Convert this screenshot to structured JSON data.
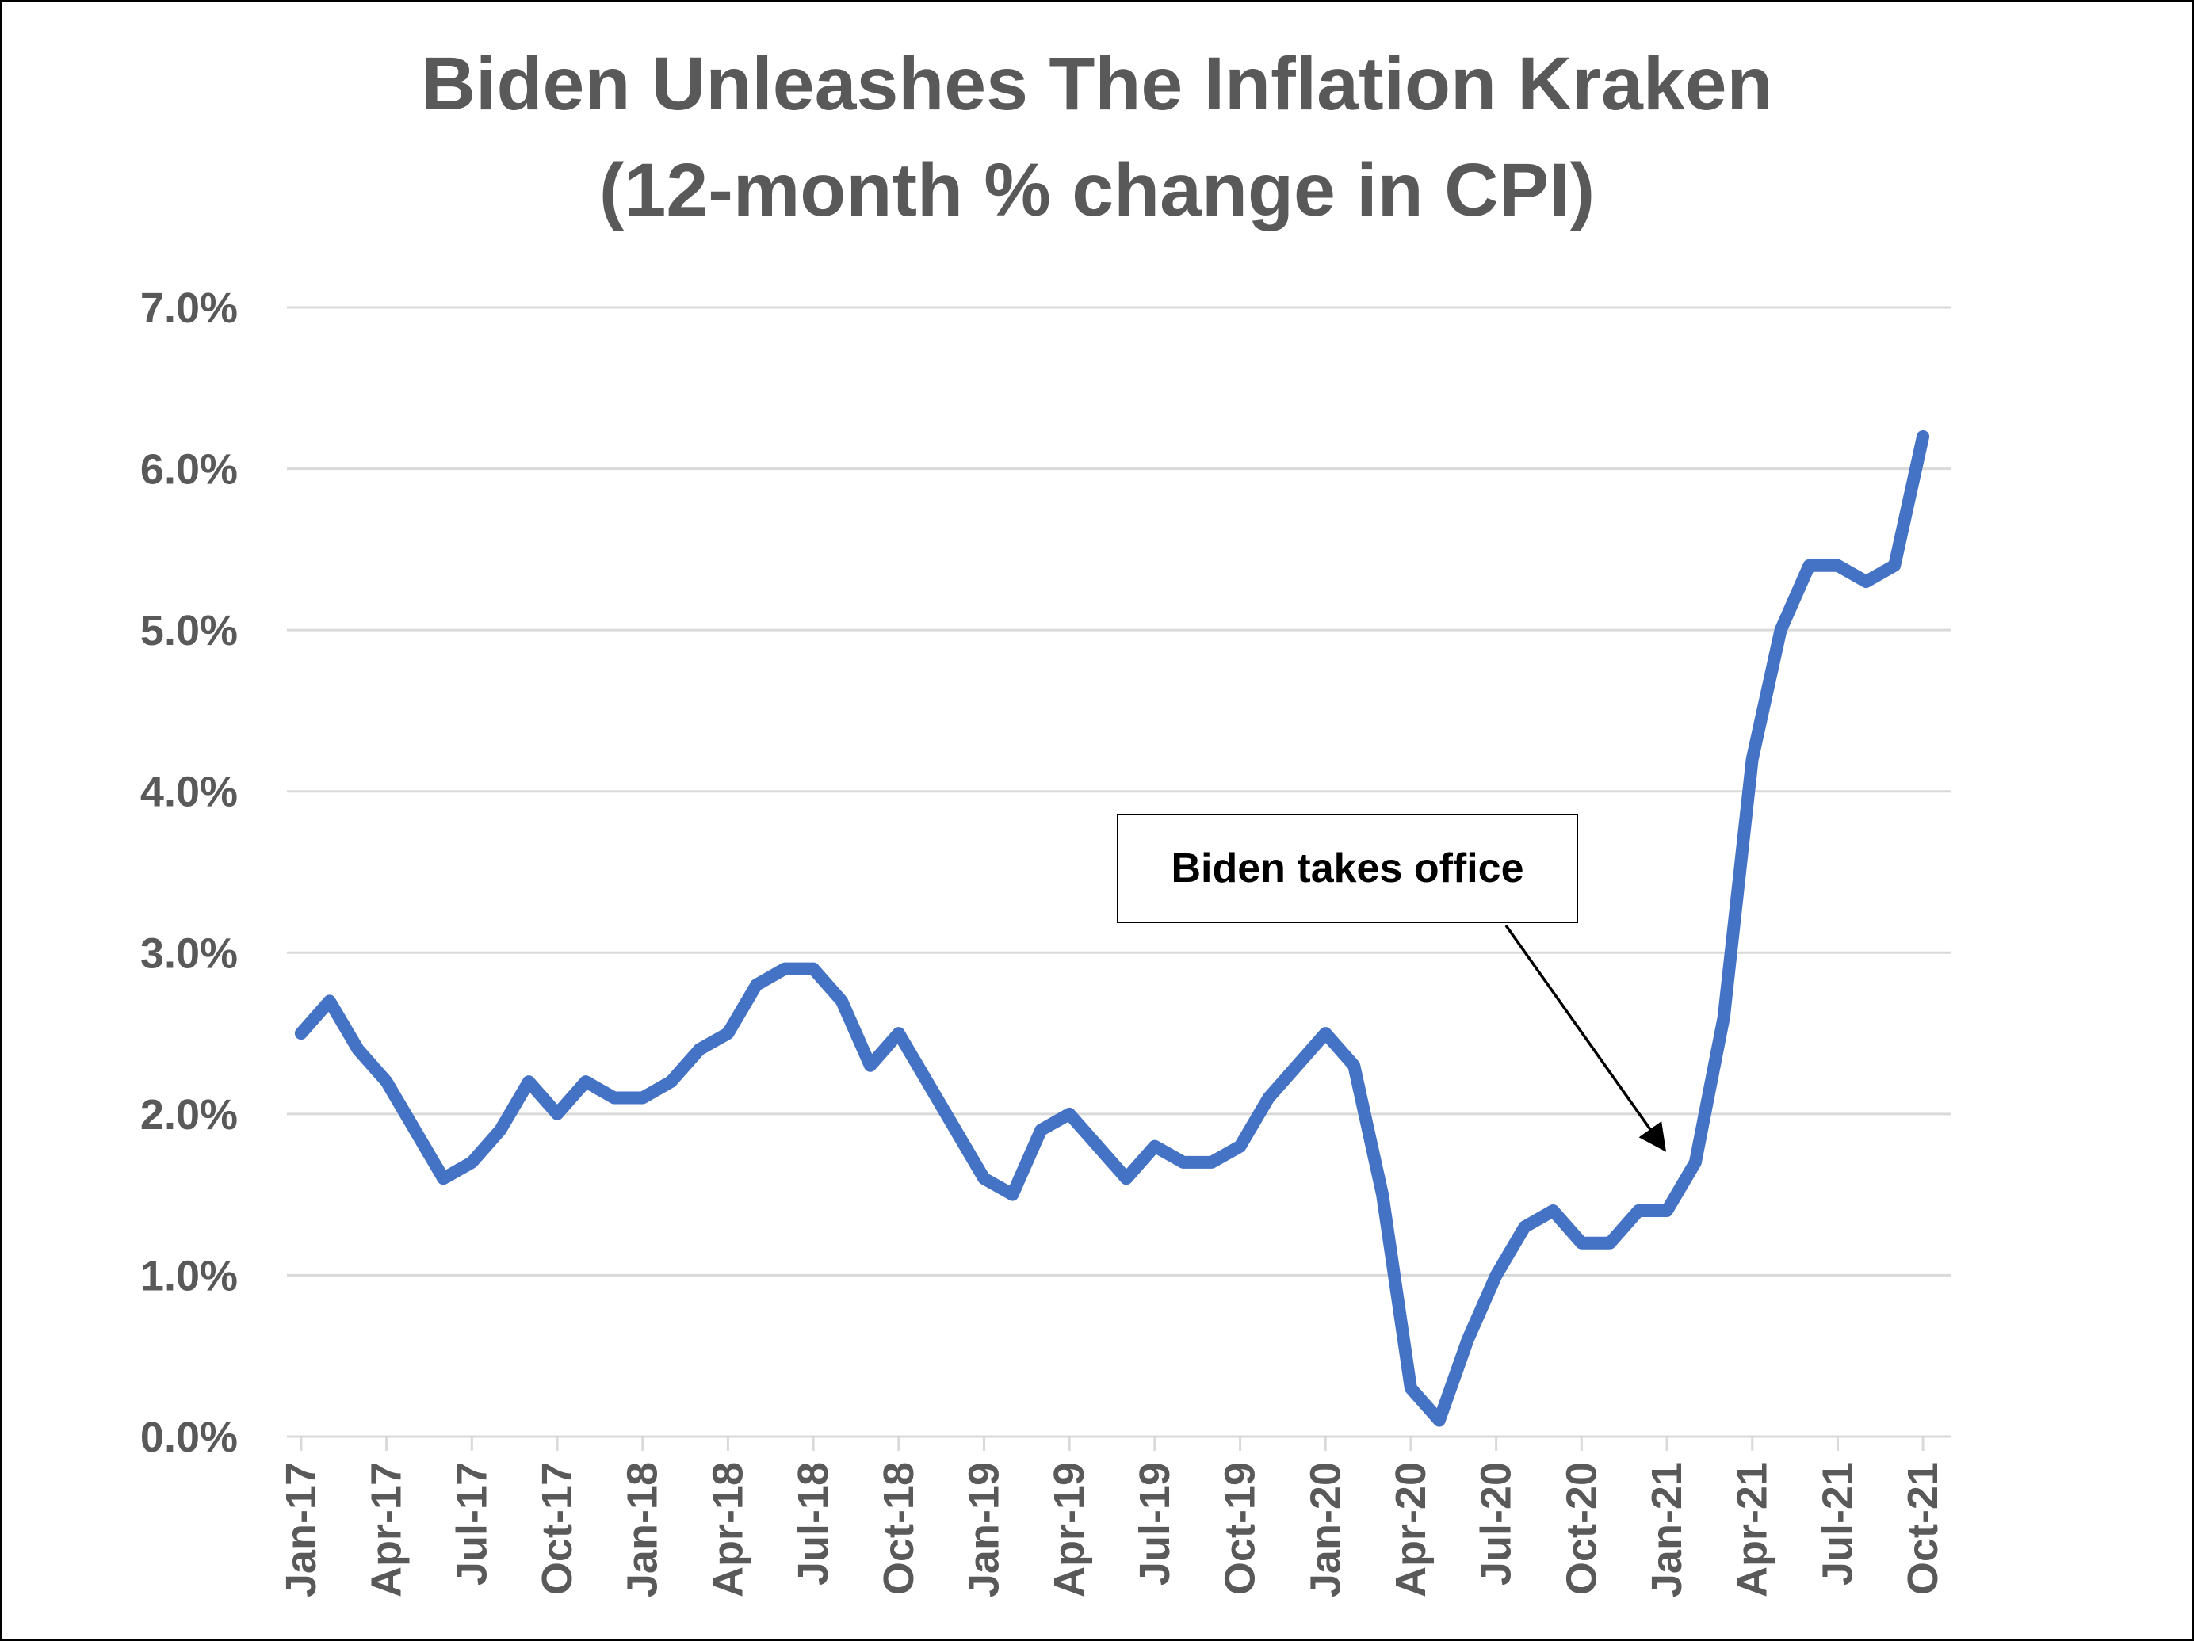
{
  "chart_data": {
    "type": "line",
    "title": "Biden Unleashes The Inflation Kraken",
    "subtitle": "(12-month % change in CPI)",
    "xlabel": "",
    "ylabel": "",
    "ylim": [
      0,
      7
    ],
    "y_ticks": [
      "0.0%",
      "1.0%",
      "2.0%",
      "3.0%",
      "4.0%",
      "5.0%",
      "6.0%",
      "7.0%"
    ],
    "x_tick_labels": [
      "Jan-17",
      "Apr-17",
      "Jul-17",
      "Oct-17",
      "Jan-18",
      "Apr-18",
      "Jul-18",
      "Oct-18",
      "Jan-19",
      "Apr-19",
      "Jul-19",
      "Oct-19",
      "Jan-20",
      "Apr-20",
      "Jul-20",
      "Oct-20",
      "Jan-21",
      "Apr-21",
      "Jul-21",
      "Oct-21"
    ],
    "grid": true,
    "legend": "none",
    "color": "#4472C4",
    "series": [
      {
        "x": [
          "Jan-17",
          "Feb-17",
          "Mar-17",
          "Apr-17",
          "May-17",
          "Jun-17",
          "Jul-17",
          "Aug-17",
          "Sep-17",
          "Oct-17",
          "Nov-17",
          "Dec-17",
          "Jan-18",
          "Feb-18",
          "Mar-18",
          "Apr-18",
          "May-18",
          "Jun-18",
          "Jul-18",
          "Aug-18",
          "Sep-18",
          "Oct-18",
          "Nov-18",
          "Dec-18",
          "Jan-19",
          "Feb-19",
          "Mar-19",
          "Apr-19",
          "May-19",
          "Jun-19",
          "Jul-19",
          "Aug-19",
          "Sep-19",
          "Oct-19",
          "Nov-19",
          "Dec-19",
          "Jan-20",
          "Feb-20",
          "Mar-20",
          "Apr-20",
          "May-20",
          "Jun-20",
          "Jul-20",
          "Aug-20",
          "Sep-20",
          "Oct-20",
          "Nov-20",
          "Dec-20",
          "Jan-21",
          "Feb-21",
          "Mar-21",
          "Apr-21",
          "May-21",
          "Jun-21",
          "Jul-21",
          "Aug-21",
          "Sep-21",
          "Oct-21"
        ],
        "values": [
          2.5,
          2.7,
          2.4,
          2.2,
          1.9,
          1.6,
          1.7,
          1.9,
          2.2,
          2.0,
          2.2,
          2.1,
          2.1,
          2.2,
          2.4,
          2.5,
          2.8,
          2.9,
          2.9,
          2.7,
          2.3,
          2.5,
          2.2,
          1.9,
          1.6,
          1.5,
          1.9,
          2.0,
          1.8,
          1.6,
          1.8,
          1.7,
          1.7,
          1.8,
          2.1,
          2.3,
          2.5,
          2.3,
          1.5,
          0.3,
          0.1,
          0.6,
          1.0,
          1.3,
          1.4,
          1.2,
          1.2,
          1.4,
          1.4,
          1.7,
          2.6,
          4.2,
          5.0,
          5.4,
          5.4,
          5.3,
          5.4,
          6.2
        ]
      }
    ],
    "annotations": [
      {
        "text": "Biden takes office",
        "points_to": "Jan-21"
      }
    ]
  }
}
